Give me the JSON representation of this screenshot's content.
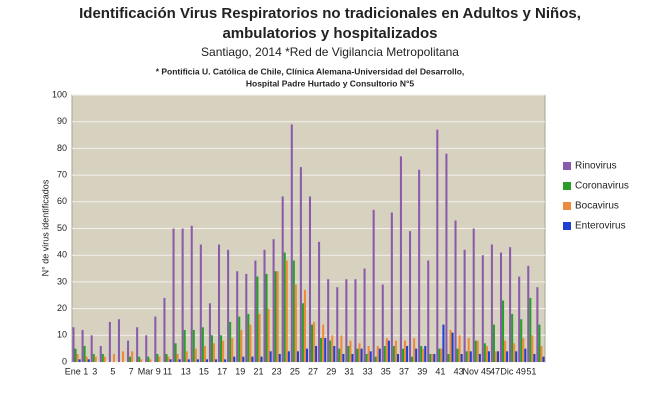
{
  "chart_data": {
    "type": "bar",
    "title": [
      "Identificación Virus Respiratorios no tradicionales en Adultos y Niños,",
      "ambulatorios y hospitalizados"
    ],
    "subtitle": "Santiago, 2014 *Red de Vigilancia Metropolitana",
    "note": [
      "* Pontificia U. Católica de Chile, Clínica Alemana-Universidad del Desarrollo,",
      "Hospital Padre Hurtado y Consultorio N°5"
    ],
    "y_label": "N° de virus identificados",
    "categories": [
      "Ene 1",
      null,
      "3",
      null,
      "5",
      null,
      "7",
      null,
      "Mar 9",
      null,
      "11",
      null,
      "13",
      null,
      "15",
      null,
      "17",
      null,
      "19",
      null,
      "21",
      null,
      "23",
      null,
      "25",
      null,
      "27",
      null,
      "29",
      null,
      "31",
      null,
      "33",
      null,
      "35",
      null,
      "37",
      null,
      "39",
      null,
      "41",
      null,
      "43",
      null,
      "Nov 45",
      null,
      "47",
      null,
      "Dic 49",
      null,
      "51",
      null
    ],
    "series": [
      {
        "name": "Rinovirus",
        "color": "#8a5aab",
        "values": [
          13,
          12,
          10,
          6,
          15,
          16,
          8,
          13,
          10,
          17,
          24,
          50,
          50,
          51,
          44,
          22,
          44,
          42,
          34,
          33,
          38,
          42,
          46,
          62,
          89,
          73,
          62,
          45,
          31,
          28,
          31,
          31,
          35,
          57,
          29,
          56,
          77,
          49,
          72,
          38,
          87,
          78,
          53,
          42,
          50,
          40,
          44,
          41,
          43,
          32,
          36,
          28
        ]
      },
      {
        "name": "Coronavirus",
        "color": "#2a9e2a",
        "values": [
          5,
          6,
          3,
          3,
          0,
          0,
          2,
          2,
          2,
          3,
          3,
          7,
          12,
          12,
          13,
          10,
          10,
          15,
          17,
          18,
          32,
          33,
          34,
          41,
          38,
          22,
          14,
          9,
          8,
          5,
          6,
          5,
          3,
          2,
          6,
          6,
          5,
          2,
          6,
          3,
          5,
          3,
          5,
          4,
          8,
          7,
          14,
          23,
          18,
          16,
          24,
          14
        ]
      },
      {
        "name": "Bocavirus",
        "color": "#ef8a3a",
        "values": [
          3,
          2,
          2,
          2,
          3,
          4,
          4,
          1,
          1,
          2,
          2,
          3,
          4,
          5,
          6,
          7,
          8,
          9,
          12,
          14,
          18,
          20,
          34,
          38,
          29,
          27,
          15,
          14,
          10,
          10,
          8,
          7,
          6,
          6,
          9,
          8,
          8,
          9,
          5,
          3,
          5,
          12,
          10,
          9,
          8,
          6,
          4,
          8,
          7,
          9,
          10,
          6
        ]
      },
      {
        "name": "Enterovirus",
        "color": "#1f3fd0",
        "values": [
          1,
          1,
          0,
          0,
          0,
          0,
          0,
          0,
          0,
          0,
          1,
          1,
          1,
          1,
          1,
          1,
          1,
          2,
          2,
          2,
          2,
          4,
          3,
          4,
          4,
          5,
          6,
          9,
          6,
          3,
          3,
          5,
          4,
          5,
          8,
          3,
          6,
          5,
          6,
          3,
          14,
          11,
          3,
          4,
          3,
          4,
          4,
          4,
          4,
          5,
          3,
          2
        ]
      }
    ],
    "ylim": [
      0,
      100
    ],
    "yticks": [
      0,
      10,
      20,
      30,
      40,
      50,
      60,
      70,
      80,
      90,
      100
    ],
    "grid": true
  }
}
